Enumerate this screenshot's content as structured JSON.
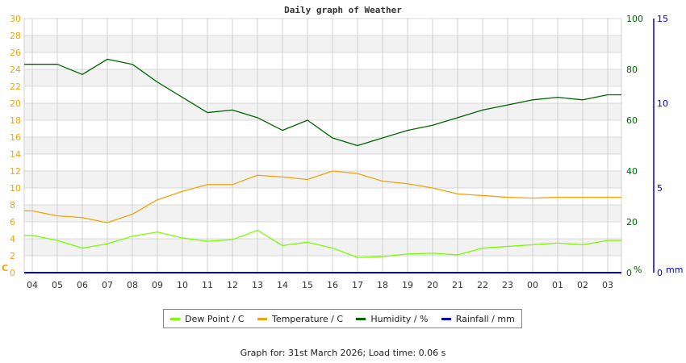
{
  "chart_data": {
    "type": "line",
    "title": "Daily graph of Weather",
    "xlabel": "",
    "x": [
      "04",
      "05",
      "06",
      "07",
      "08",
      "09",
      "10",
      "11",
      "12",
      "13",
      "14",
      "15",
      "16",
      "17",
      "18",
      "19",
      "20",
      "21",
      "22",
      "23",
      "00",
      "01",
      "02",
      "03"
    ],
    "axes": {
      "left": {
        "label": "C",
        "range": [
          0,
          30
        ],
        "ticks": [
          0,
          2,
          4,
          6,
          8,
          10,
          12,
          14,
          16,
          18,
          20,
          22,
          24,
          26,
          28,
          30
        ],
        "color": "#f0a30a"
      },
      "right_humidity": {
        "label": "%",
        "range": [
          0,
          100
        ],
        "ticks": [
          0,
          20,
          40,
          60,
          80,
          100
        ],
        "color": "#006400"
      },
      "right_rainfall": {
        "label": "mm",
        "range": [
          0,
          15
        ],
        "ticks": [
          0,
          5,
          10,
          15
        ],
        "color": "#0000cc"
      }
    },
    "grid": true,
    "legend_position": "bottom",
    "series": [
      {
        "name": "Dew Point / C",
        "color": "#7cfc00",
        "axis": "left",
        "values": [
          4.4,
          3.8,
          2.9,
          3.4,
          4.3,
          4.8,
          4.1,
          3.7,
          3.9,
          5.0,
          3.2,
          3.6,
          2.9,
          1.8,
          1.9,
          2.2,
          2.3,
          2.1,
          2.9,
          3.1,
          3.3,
          3.5,
          3.3,
          3.8
        ]
      },
      {
        "name": "Temperature / C",
        "color": "#f0a30a",
        "axis": "left",
        "values": [
          7.3,
          6.7,
          6.5,
          5.9,
          6.9,
          8.6,
          9.6,
          10.4,
          10.4,
          11.5,
          11.3,
          11.0,
          12.0,
          11.7,
          10.8,
          10.5,
          10.0,
          9.3,
          9.1,
          8.9,
          8.8,
          8.9,
          8.9,
          8.9
        ]
      },
      {
        "name": "Humidity / %",
        "color": "#006400",
        "axis": "right_humidity",
        "values": [
          82,
          82,
          78,
          84,
          82,
          75,
          69,
          63,
          64,
          61,
          56,
          60,
          53,
          50,
          53,
          56,
          58,
          61,
          64,
          66,
          68,
          69,
          68,
          70
        ]
      },
      {
        "name": "Rainfall / mm",
        "color": "#0000cc",
        "axis": "right_rainfall",
        "values": [
          0,
          0,
          0,
          0,
          0,
          0,
          0,
          0,
          0,
          0,
          0,
          0,
          0,
          0,
          0,
          0,
          0,
          0,
          0,
          0,
          0,
          0,
          0,
          0
        ]
      }
    ]
  },
  "title": "Daily graph of Weather",
  "legend": [
    {
      "label": "Dew Point / C",
      "color": "#7cfc00"
    },
    {
      "label": "Temperature / C",
      "color": "#f0a30a"
    },
    {
      "label": "Humidity / %",
      "color": "#006400"
    },
    {
      "label": "Rainfall / mm",
      "color": "#0000cc"
    }
  ],
  "footer": "Graph for: 31st March 2026; Load time: 0.06 s"
}
